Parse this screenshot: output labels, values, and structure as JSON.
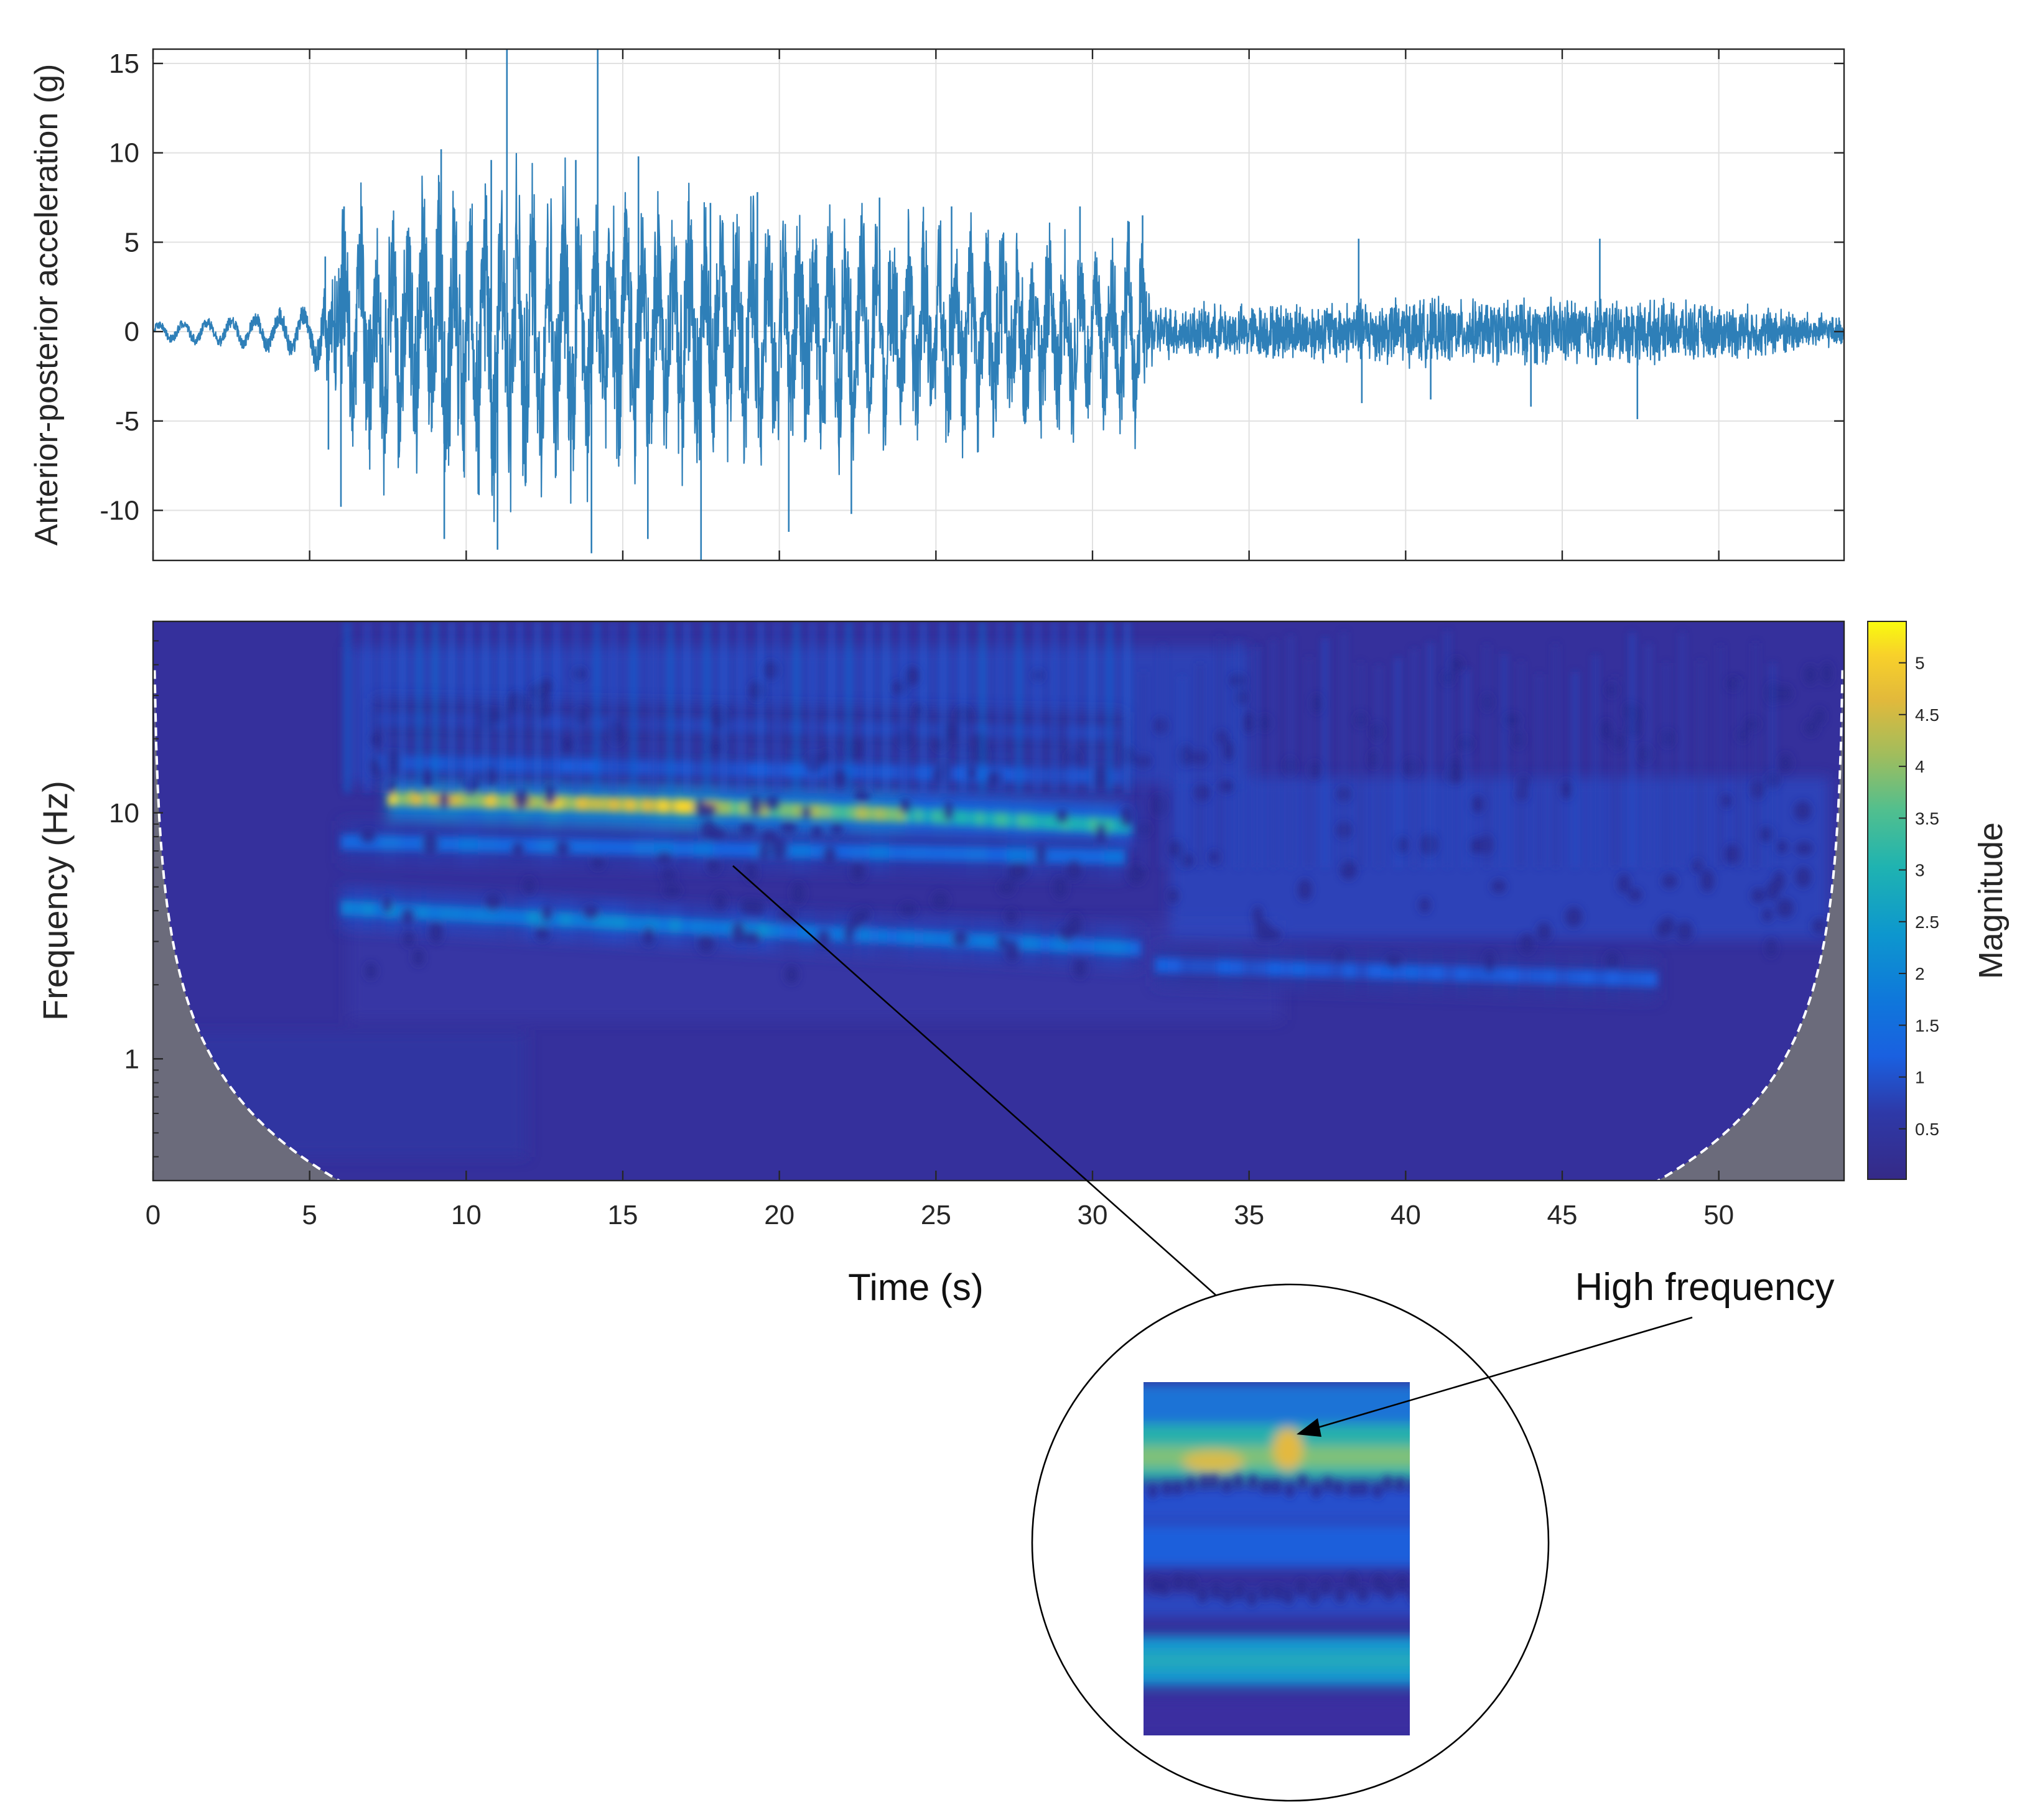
{
  "chart_data": [
    {
      "type": "line",
      "title": "",
      "xlabel": "",
      "ylabel": "Anterior-posterior acceleration (g)",
      "xlim": [
        0,
        54
      ],
      "ylim": [
        -12.8,
        15.8
      ],
      "xticks": [
        0,
        5,
        10,
        15,
        20,
        25,
        30,
        35,
        40,
        45,
        50
      ],
      "yticks": [
        -10,
        -5,
        0,
        5,
        10,
        15
      ],
      "ytick_labels": [
        "-10",
        "-5",
        "0",
        "5",
        "10",
        "15"
      ],
      "grid": true,
      "series": [
        {
          "color": "#2e7fb8",
          "envelope": {
            "t": [
              0,
              3,
              5,
              5.5,
              6,
              8,
              10,
              11,
              12,
              14,
              16,
              18,
              20,
              22,
              24,
              26,
              28,
              30,
              31.6,
              32,
              35,
              38,
              40,
              42,
              45,
              46.5,
              48,
              50,
              52,
              54
            ],
            "amp": [
              0.5,
              0.9,
              1.5,
              3.0,
              6.5,
              7.0,
              8.0,
              8.5,
              8.0,
              7.5,
              7.0,
              6.5,
              6.0,
              6.0,
              5.5,
              5.5,
              5.0,
              5.0,
              5.0,
              2.0,
              2.0,
              2.3,
              2.5,
              2.3,
              2.5,
              2.5,
              2.3,
              2.0,
              1.8,
              1.0
            ]
          },
          "spikes": [
            {
              "t": 5.5,
              "v": 4.2
            },
            {
              "t": 5.6,
              "v": -6.6
            },
            {
              "t": 6.0,
              "v": -9.8
            },
            {
              "t": 6.1,
              "v": 7.0
            },
            {
              "t": 9.2,
              "v": 10.2
            },
            {
              "t": 9.3,
              "v": -11.6
            },
            {
              "t": 10.8,
              "v": 9.6
            },
            {
              "t": 11.0,
              "v": -12.2
            },
            {
              "t": 11.3,
              "v": 15.8
            },
            {
              "t": 13.5,
              "v": 9.6
            },
            {
              "t": 14.0,
              "v": -12.4
            },
            {
              "t": 14.2,
              "v": 15.8
            },
            {
              "t": 15.5,
              "v": 9.8
            },
            {
              "t": 15.8,
              "v": -11.6
            },
            {
              "t": 17.5,
              "v": -12.8
            },
            {
              "t": 17.8,
              "v": 7.2
            },
            {
              "t": 19.3,
              "v": 7.8
            },
            {
              "t": 20.3,
              "v": -11.2
            },
            {
              "t": 22.3,
              "v": -10.2
            },
            {
              "t": 23.2,
              "v": 7.5
            },
            {
              "t": 25.5,
              "v": 7.0
            },
            {
              "t": 29.6,
              "v": 7.0
            },
            {
              "t": 31.6,
              "v": 6.5
            },
            {
              "t": 38.5,
              "v": 5.2
            },
            {
              "t": 38.6,
              "v": -4.0
            },
            {
              "t": 40.8,
              "v": -3.8
            },
            {
              "t": 44.0,
              "v": -4.2
            },
            {
              "t": 46.2,
              "v": 5.2
            },
            {
              "t": 47.4,
              "v": -4.9
            }
          ]
        }
      ]
    },
    {
      "type": "heatmap",
      "title": "",
      "xlabel": "Time (s)",
      "ylabel": "Frequency (Hz)",
      "xlim": [
        0,
        54
      ],
      "ylim_hz": [
        0.32,
        60
      ],
      "y_scale": "log",
      "xticks": [
        0,
        5,
        10,
        15,
        20,
        25,
        30,
        35,
        40,
        45,
        50
      ],
      "xtick_labels": [
        "0",
        "5",
        "10",
        "15",
        "20",
        "25",
        "30",
        "35",
        "40",
        "45",
        "50"
      ],
      "yticks": [
        1,
        10
      ],
      "ytick_labels": [
        "1",
        "10"
      ],
      "colormap": "parula",
      "background_color": "#35309c",
      "cone_color": "#6b6b7b",
      "colorbar": {
        "label": "Magnitude",
        "range": [
          0,
          5.4
        ],
        "ticks": [
          0.5,
          1,
          1.5,
          2,
          2.5,
          3,
          3.5,
          4,
          4.5,
          5
        ],
        "tick_labels": [
          "0.5",
          "1",
          "1.5",
          "2",
          "2.5",
          "3",
          "3.5",
          "4",
          "4.5",
          "5"
        ],
        "position": "right"
      },
      "ridges": [
        {
          "name_hint": "",
          "segments": [
            {
              "t0": 7.5,
              "t1": 18,
              "f0": 11.5,
              "f1": 10.5,
              "magnitude": 4.5
            },
            {
              "t0": 18,
              "t1": 24,
              "f0": 10.5,
              "f1": 9.8,
              "magnitude": 3.8
            },
            {
              "t0": 24,
              "t1": 31.2,
              "f0": 9.8,
              "f1": 8.8,
              "magnitude": 3.0
            }
          ]
        },
        {
          "name_hint": "",
          "segments": [
            {
              "t0": 6,
              "t1": 20,
              "f0": 4.1,
              "f1": 3.3,
              "magnitude": 1.9
            },
            {
              "t0": 20,
              "t1": 31.5,
              "f0": 3.3,
              "f1": 2.8,
              "magnitude": 1.6
            },
            {
              "t0": 32,
              "t1": 48,
              "f0": 2.4,
              "f1": 2.1,
              "magnitude": 1.1
            }
          ]
        },
        {
          "name_hint": "",
          "segments": [
            {
              "t0": 6,
              "t1": 31,
              "f0": 7.6,
              "f1": 6.6,
              "magnitude": 1.5
            },
            {
              "t0": 7,
              "t1": 31,
              "f0": 16,
              "f1": 14,
              "magnitude": 1.0
            },
            {
              "t0": 7,
              "t1": 31,
              "f0": 24,
              "f1": 21,
              "magnitude": 0.7
            }
          ]
        }
      ],
      "annotations": {
        "callout_text": "High frequency",
        "callout_point": {
          "t": 18.5,
          "f": 8.0
        }
      }
    }
  ]
}
